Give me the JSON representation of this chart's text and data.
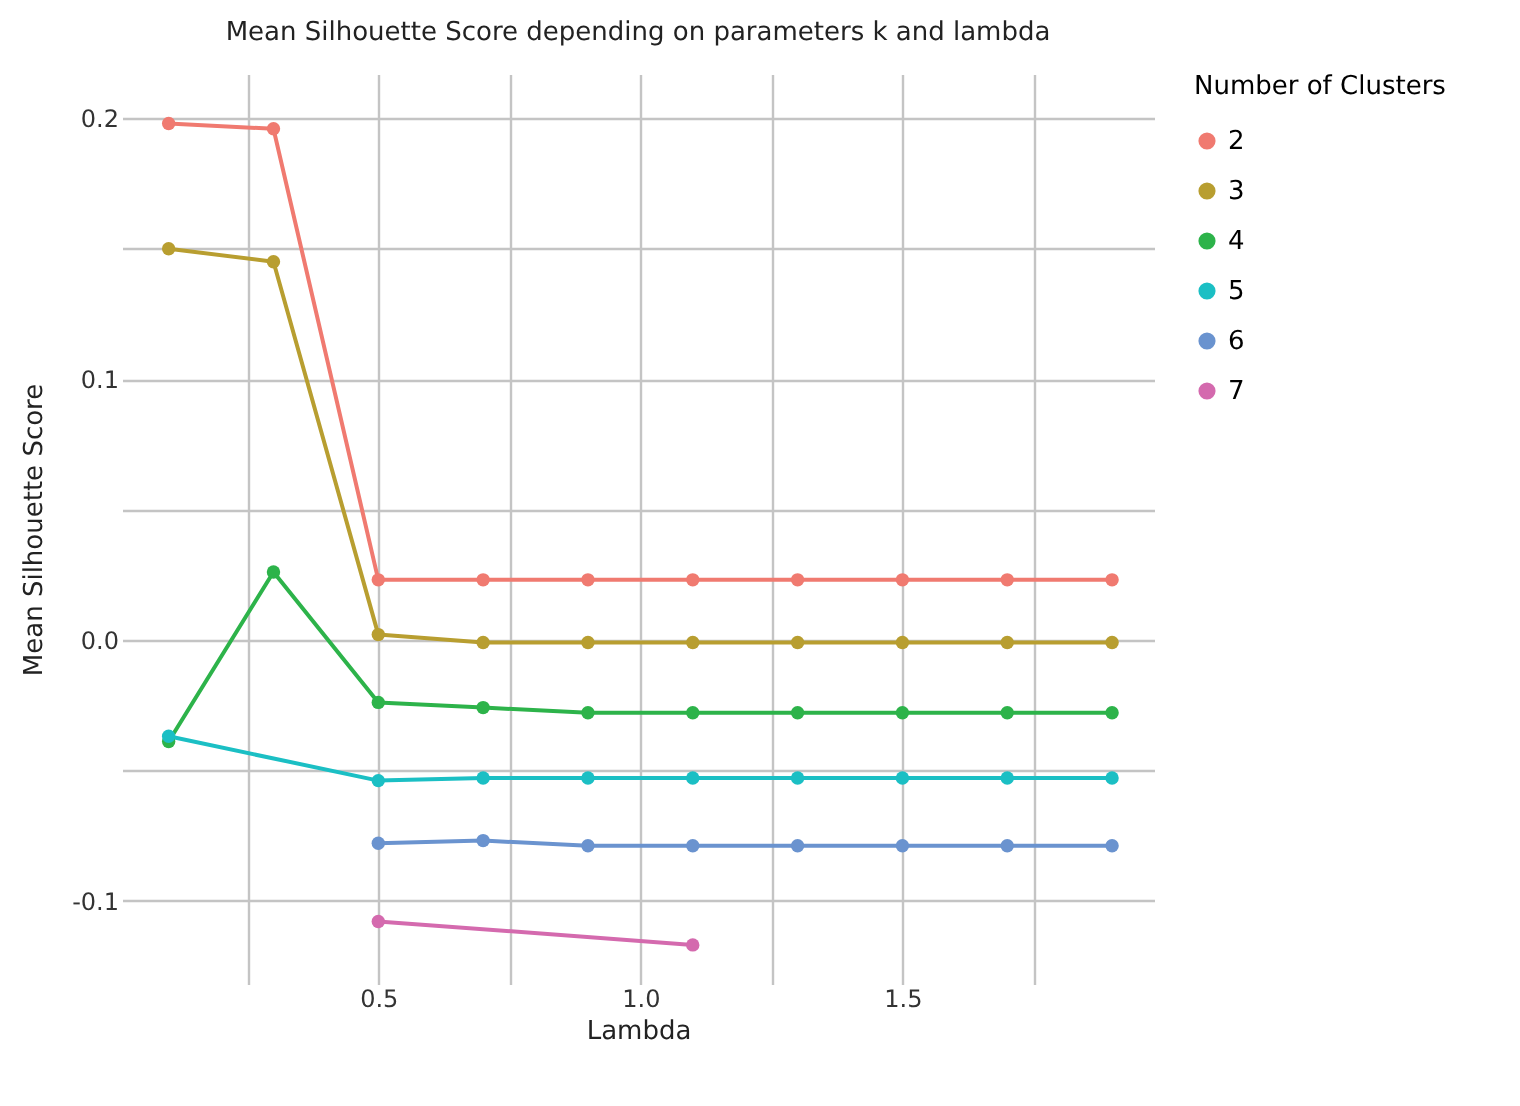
{
  "chart_data": {
    "type": "line",
    "title": "Mean Silhouette Score depending on parameters k and lambda",
    "xlabel": "Lambda",
    "ylabel": "Mean Silhouette Score",
    "legend_title": "Number of Clusters",
    "legend": "right",
    "grid": true,
    "marker": "circle",
    "line_style": "solid",
    "xlim": [
      0.011,
      1.98
    ],
    "xticks": [
      {
        "value": 0.25,
        "label": null
      },
      0.5,
      {
        "value": 0.75,
        "label": null
      },
      {
        "value": 1,
        "label": "1.0"
      },
      {
        "value": 1.25,
        "label": null
      },
      1.5,
      {
        "value": 1.75,
        "label": null
      }
    ],
    "ylim": [
      -0.132,
      0.217
    ],
    "yticks": [
      0.2,
      {
        "value": 0.15,
        "label": null
      },
      0.1,
      {
        "value": 0.05,
        "label": null
      },
      {
        "value": 0,
        "label": "0.0"
      },
      {
        "value": -0.05,
        "label": null
      },
      {
        "value": -0.1,
        "label": "-0.1"
      }
    ],
    "x": [
      0.1,
      0.3,
      0.5,
      0.7,
      0.9,
      1.1,
      1.3,
      1.5,
      1.7,
      1.9
    ],
    "series": [
      {
        "name": "2",
        "color": "#f07a70",
        "values": [
          0.198,
          0.196,
          0.023,
          0.023,
          0.023,
          0.023,
          0.023,
          0.023,
          0.023,
          0.023
        ]
      },
      {
        "name": "3",
        "color": "#b89e30",
        "values": [
          0.15,
          0.145,
          0.002,
          -0.001,
          -0.001,
          -0.001,
          -0.001,
          -0.001,
          -0.001,
          -0.001
        ]
      },
      {
        "name": "4",
        "color": "#2db34a",
        "values": [
          -0.039,
          0.026,
          -0.024,
          -0.026,
          -0.028,
          -0.028,
          -0.028,
          -0.028,
          -0.028,
          -0.028
        ]
      },
      {
        "name": "5",
        "color": "#1bbfc4",
        "x": [
          0.1,
          0.5,
          0.7,
          0.9,
          1.1,
          1.3,
          1.5,
          1.7,
          1.9
        ],
        "values": [
          -0.037,
          -0.054,
          -0.053,
          -0.053,
          -0.053,
          -0.053,
          -0.053,
          -0.053,
          -0.053
        ]
      },
      {
        "name": "6",
        "color": "#6a93cf",
        "x": [
          0.5,
          0.7,
          0.9,
          1.1,
          1.3,
          1.5,
          1.7,
          1.9
        ],
        "values": [
          -0.078,
          -0.077,
          -0.079,
          -0.079,
          -0.079,
          -0.079,
          -0.079,
          -0.079
        ]
      },
      {
        "name": "7",
        "color": "#d46aae",
        "x": [
          0.5,
          1.1
        ],
        "values": [
          -0.108,
          -0.117
        ]
      }
    ]
  }
}
